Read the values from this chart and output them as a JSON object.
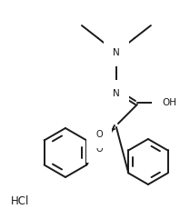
{
  "background_color": "#ffffff",
  "line_color": "#1a1a1a",
  "line_width": 1.4,
  "font_size": 7.5,
  "hcl_text": "HCl",
  "n_amine_label": "N",
  "n_amide_label": "N",
  "oh_label": "OH"
}
